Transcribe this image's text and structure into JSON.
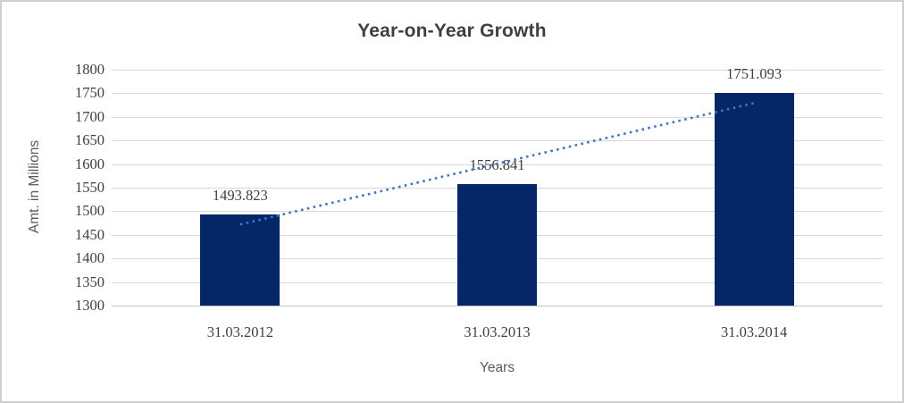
{
  "chart_data": {
    "type": "bar",
    "title": "Year-on-Year Growth",
    "categories": [
      "31.03.2012",
      "31.03.2013",
      "31.03.2014"
    ],
    "values": [
      1493.823,
      1556.841,
      1751.093
    ],
    "data_labels": [
      "1493.823",
      "1556.841",
      "1751.093"
    ],
    "xlabel": "Years",
    "ylabel": "Amt. in Millions",
    "ylim": [
      1300,
      1800
    ],
    "yticks": [
      1800,
      1750,
      1700,
      1650,
      1600,
      1550,
      1500,
      1450,
      1400,
      1350,
      1300
    ],
    "grid": true,
    "legend_position": "none",
    "trendline": {
      "type": "linear",
      "style": "dotted",
      "color": "#4472c4"
    },
    "colors": {
      "bar": "#052767",
      "gridline": "#d9d9d9",
      "axis_line": "#c3c3c3",
      "title_text": "#3f3f3f",
      "tick_text": "#404040",
      "axis_title_text": "#595959",
      "chart_border": "#cfcfcf",
      "background": "#ffffff"
    }
  }
}
